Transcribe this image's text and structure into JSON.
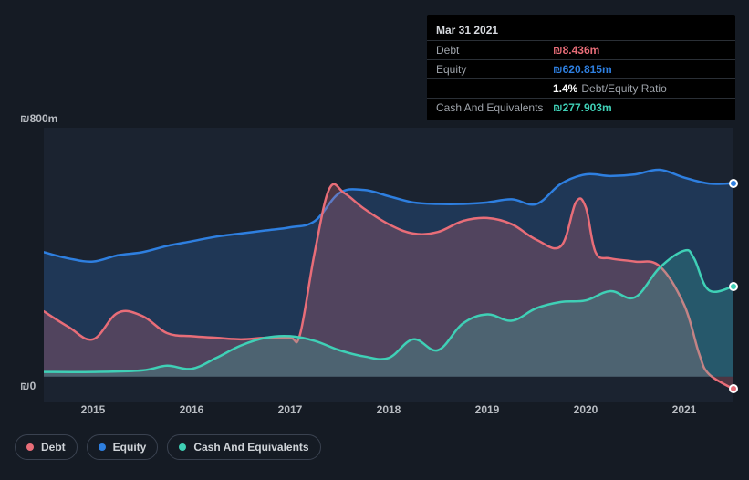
{
  "currency_symbol": "₪",
  "chart": {
    "type": "area",
    "background_color": "#151b24",
    "plot_background": "#1b2330",
    "xlim": [
      2014.5,
      2021.5
    ],
    "ylim": [
      -80,
      800
    ],
    "y_ticks": [
      {
        "value": 0,
        "label": "₪0"
      },
      {
        "value": 800,
        "label": "₪800m"
      }
    ],
    "x_ticks": [
      2015,
      2016,
      2017,
      2018,
      2019,
      2020,
      2021
    ],
    "x_tick_fontsize": 12,
    "y_tick_fontsize": 12,
    "tick_color": "#b8bcc2",
    "series": [
      {
        "name": "Equity",
        "legend_label": "Equity",
        "stroke": "#2e7fe0",
        "fill": "#2e7fe0",
        "fill_opacity": 0.22,
        "line_width": 2.5,
        "data": [
          [
            2014.5,
            400
          ],
          [
            2014.75,
            380
          ],
          [
            2015.0,
            370
          ],
          [
            2015.25,
            390
          ],
          [
            2015.5,
            400
          ],
          [
            2015.75,
            420
          ],
          [
            2016.0,
            435
          ],
          [
            2016.25,
            450
          ],
          [
            2016.5,
            460
          ],
          [
            2016.75,
            470
          ],
          [
            2017.0,
            480
          ],
          [
            2017.25,
            500
          ],
          [
            2017.5,
            590
          ],
          [
            2017.75,
            600
          ],
          [
            2018.0,
            580
          ],
          [
            2018.25,
            560
          ],
          [
            2018.5,
            555
          ],
          [
            2018.75,
            555
          ],
          [
            2019.0,
            560
          ],
          [
            2019.25,
            570
          ],
          [
            2019.5,
            555
          ],
          [
            2019.75,
            620
          ],
          [
            2020.0,
            650
          ],
          [
            2020.25,
            645
          ],
          [
            2020.5,
            650
          ],
          [
            2020.75,
            665
          ],
          [
            2021.0,
            640
          ],
          [
            2021.25,
            620.815
          ],
          [
            2021.5,
            622
          ]
        ]
      },
      {
        "name": "Debt",
        "legend_label": "Debt",
        "stroke": "#e86d78",
        "fill": "#e86d78",
        "fill_opacity": 0.25,
        "line_width": 2.5,
        "data": [
          [
            2014.5,
            210
          ],
          [
            2014.75,
            160
          ],
          [
            2015.0,
            120
          ],
          [
            2015.25,
            205
          ],
          [
            2015.5,
            195
          ],
          [
            2015.75,
            140
          ],
          [
            2016.0,
            130
          ],
          [
            2016.25,
            125
          ],
          [
            2016.5,
            120
          ],
          [
            2016.75,
            125
          ],
          [
            2017.0,
            125
          ],
          [
            2017.1,
            135
          ],
          [
            2017.25,
            400
          ],
          [
            2017.4,
            605
          ],
          [
            2017.55,
            590
          ],
          [
            2017.75,
            540
          ],
          [
            2018.0,
            490
          ],
          [
            2018.25,
            460
          ],
          [
            2018.5,
            465
          ],
          [
            2018.75,
            500
          ],
          [
            2019.0,
            510
          ],
          [
            2019.25,
            490
          ],
          [
            2019.5,
            440
          ],
          [
            2019.75,
            420
          ],
          [
            2019.9,
            560
          ],
          [
            2020.0,
            545
          ],
          [
            2020.1,
            400
          ],
          [
            2020.25,
            380
          ],
          [
            2020.5,
            370
          ],
          [
            2020.75,
            355
          ],
          [
            2021.0,
            230
          ],
          [
            2021.15,
            75
          ],
          [
            2021.25,
            8.436
          ],
          [
            2021.5,
            -40
          ]
        ]
      },
      {
        "name": "Cash And Equivalents",
        "legend_label": "Cash And Equivalents",
        "stroke": "#3fd0b6",
        "fill": "#3fd0b6",
        "fill_opacity": 0.22,
        "line_width": 2.5,
        "data": [
          [
            2014.5,
            15
          ],
          [
            2015.0,
            15
          ],
          [
            2015.5,
            20
          ],
          [
            2015.75,
            35
          ],
          [
            2016.0,
            25
          ],
          [
            2016.25,
            60
          ],
          [
            2016.5,
            100
          ],
          [
            2016.75,
            125
          ],
          [
            2017.0,
            130
          ],
          [
            2017.25,
            115
          ],
          [
            2017.5,
            85
          ],
          [
            2017.75,
            65
          ],
          [
            2018.0,
            60
          ],
          [
            2018.25,
            120
          ],
          [
            2018.5,
            85
          ],
          [
            2018.75,
            170
          ],
          [
            2019.0,
            200
          ],
          [
            2019.25,
            180
          ],
          [
            2019.5,
            220
          ],
          [
            2019.75,
            240
          ],
          [
            2020.0,
            245
          ],
          [
            2020.25,
            275
          ],
          [
            2020.5,
            255
          ],
          [
            2020.75,
            350
          ],
          [
            2021.0,
            405
          ],
          [
            2021.1,
            380
          ],
          [
            2021.25,
            277.903
          ],
          [
            2021.5,
            290
          ]
        ]
      }
    ],
    "markers": [
      {
        "series": "Equity",
        "x": 2021.5,
        "y": 622,
        "color": "#2e7fe0"
      },
      {
        "series": "Cash And Equivalents",
        "x": 2021.5,
        "y": 290,
        "color": "#3fd0b6"
      },
      {
        "series": "Debt",
        "x": 2021.5,
        "y": -40,
        "color": "#e86d78"
      }
    ]
  },
  "tooltip": {
    "date": "Mar 31 2021",
    "rows": [
      {
        "label": "Debt",
        "value": "₪8.436m",
        "color": "#e86d78"
      },
      {
        "label": "Equity",
        "value": "₪620.815m",
        "color": "#2e7fe0"
      },
      {
        "label": "",
        "value": "1.4%",
        "color": "#ffffff",
        "extra": "Debt/Equity Ratio"
      },
      {
        "label": "Cash And Equivalents",
        "value": "₪277.903m",
        "color": "#3fd0b6"
      }
    ]
  },
  "legend": [
    {
      "label": "Debt",
      "color": "#e86d78"
    },
    {
      "label": "Equity",
      "color": "#2e7fe0"
    },
    {
      "label": "Cash And Equivalents",
      "color": "#3fd0b6"
    }
  ]
}
